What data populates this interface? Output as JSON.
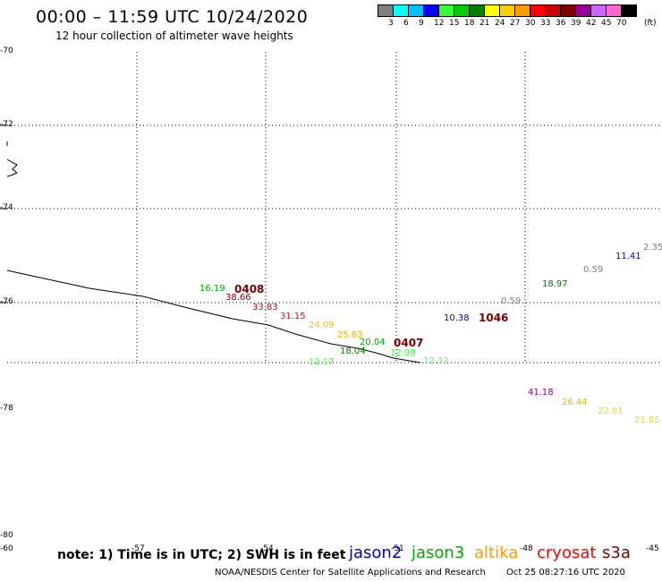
{
  "header": {
    "title": "00:00 – 11:59 UTC 10/24/2020",
    "subtitle": "12 hour collection of altimeter wave heights"
  },
  "legend": {
    "colors": [
      "#808080",
      "#00ffff",
      "#00bfff",
      "#0000ff",
      "#33ff33",
      "#00cc00",
      "#008000",
      "#ffff00",
      "#ffcc00",
      "#ff9900",
      "#ff0000",
      "#cc0000",
      "#800000",
      "#990099",
      "#cc66ff",
      "#ff66cc",
      "#000000"
    ],
    "labels": [
      "3",
      "6",
      "9",
      "12",
      "15",
      "18",
      "21",
      "24",
      "27",
      "30",
      "33",
      "36",
      "39",
      "42",
      "45",
      "70"
    ],
    "units": "(ft)"
  },
  "axes": {
    "lat_labels": [
      "-70",
      "-72",
      "-74",
      "-76",
      "-78",
      "-80"
    ],
    "lon_labels": [
      "-60",
      "-57",
      "-54",
      "-51",
      "-48",
      "-45"
    ]
  },
  "observations": [
    {
      "text": "16.19",
      "color": "#00aa00"
    },
    {
      "text": "0408",
      "color": "#800000",
      "bold": true
    },
    {
      "text": "38.66",
      "color": "#800000"
    },
    {
      "text": "33.83",
      "color": "#cc0000"
    },
    {
      "text": "31.15",
      "color": "#ff0000"
    },
    {
      "text": "24.09",
      "color": "#e6c800"
    },
    {
      "text": "25.63",
      "color": "#e6b800"
    },
    {
      "text": "20.04",
      "color": "#00aa00"
    },
    {
      "text": "0407",
      "color": "#800000",
      "bold": true
    },
    {
      "text": "18.04",
      "color": "#008000"
    },
    {
      "text": "12.98",
      "color": "#33ff33"
    },
    {
      "text": "12.17",
      "color": "#66ee66"
    },
    {
      "text": "12.32",
      "color": "#66ee66"
    },
    {
      "text": "10.38",
      "color": "#0000cc"
    },
    {
      "text": "1046",
      "color": "#800000",
      "bold": true
    },
    {
      "text": "0.59",
      "color": "#808080"
    },
    {
      "text": "18.97",
      "color": "#008000"
    },
    {
      "text": "0.59",
      "color": "#808080"
    },
    {
      "text": "11.41",
      "color": "#0000cc"
    },
    {
      "text": "2.35",
      "color": "#808080"
    },
    {
      "text": "41.18",
      "color": "#990099"
    },
    {
      "text": "26.44",
      "color": "#e6b800"
    },
    {
      "text": "22.81",
      "color": "#eedd00"
    },
    {
      "text": "21.85",
      "color": "#eedd00"
    }
  ],
  "footer": {
    "note": "note: 1) Time is in UTC; 2) SWH is in feet",
    "satellites": [
      {
        "name": "jason2",
        "color": "#0000cc"
      },
      {
        "name": "jason3",
        "color": "#00aa00"
      },
      {
        "name": "altika",
        "color": "#ff9900"
      },
      {
        "name": "cryosat",
        "color": "#ff0000"
      },
      {
        "name": "s3a",
        "color": "#800000"
      }
    ],
    "credit": "NOAA/NESDIS Center for Satellite Applications and Research",
    "timestamp": "Oct 25 08:27:16 UTC 2020"
  }
}
